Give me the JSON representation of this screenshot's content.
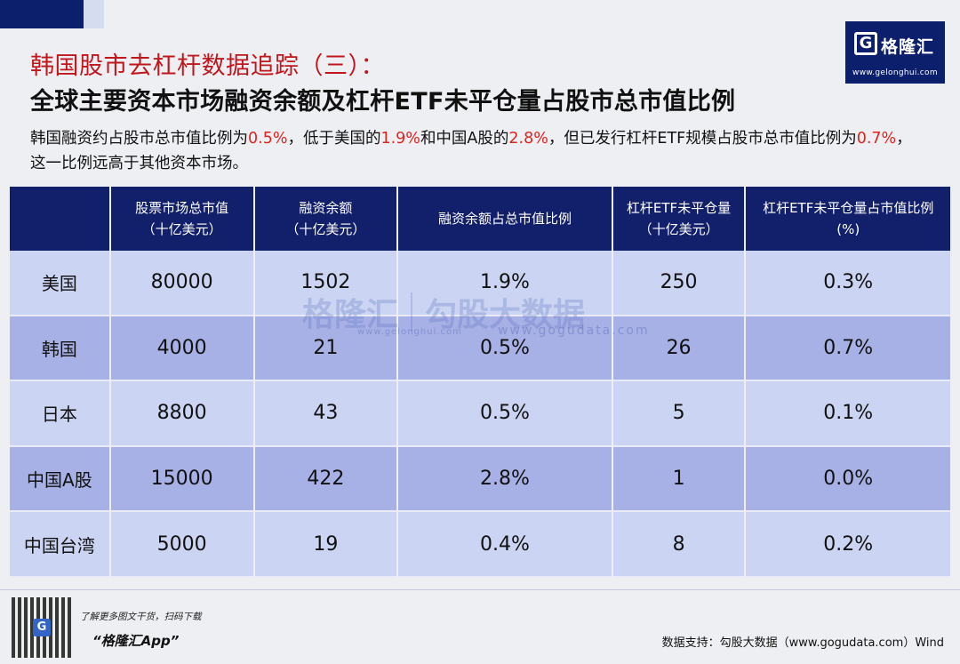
{
  "title": {
    "line1": "韩国股市去杠杆数据追踪（三）：",
    "line2": "全球主要资本市场融资余额及杠杆ETF未平仓量占股市总市值比例"
  },
  "description": {
    "p1": "韩国融资约占股市总市值比例为",
    "v1": "0.5%",
    "p2": "，低于美国的",
    "v2": "1.9%",
    "p3": "和中国A股的",
    "v3": "2.8%",
    "p4": "，但已发行杠杆ETF规模占股市总市值比例为",
    "v4": "0.7%",
    "p5": "，这一比例远高于其他资本市场。"
  },
  "logo": {
    "mark": "G",
    "name": "格隆汇",
    "url": "www.gelonghui.com"
  },
  "table": {
    "headers": [
      {
        "line1": "",
        "line2": ""
      },
      {
        "line1": "股票市场总市值",
        "line2": "（十亿美元）"
      },
      {
        "line1": "融资余额",
        "line2": "（十亿美元）"
      },
      {
        "line1": "融资余额占总市值比例",
        "line2": ""
      },
      {
        "line1": "杠杆ETF未平仓量",
        "line2": "（十亿美元）"
      },
      {
        "line1": "杠杆ETF未平仓量占市值比例",
        "line2": "(%)"
      }
    ],
    "rows": [
      [
        "美国",
        "80000",
        "1502",
        "1.9%",
        "250",
        "0.3%"
      ],
      [
        "韩国",
        "4000",
        "21",
        "0.5%",
        "26",
        "0.7%"
      ],
      [
        "日本",
        "8800",
        "43",
        "0.5%",
        "5",
        "0.1%"
      ],
      [
        "中国A股",
        "15000",
        "422",
        "2.8%",
        "1",
        "0.0%"
      ],
      [
        "中国台湾",
        "5000",
        "19",
        "0.4%",
        "8",
        "0.2%"
      ]
    ]
  },
  "watermark": {
    "brand": "格隆汇",
    "brand2": "勾股大数据",
    "url1": "www.gelonghui.com",
    "url2": "www.gogudata.com"
  },
  "footer": {
    "promo": "了解更多图文干货，扫码下载",
    "app": "“格隆汇App”",
    "source": "数据支持：勾股大数据（www.gogudata.com）Wind",
    "qr_mark": "G"
  }
}
